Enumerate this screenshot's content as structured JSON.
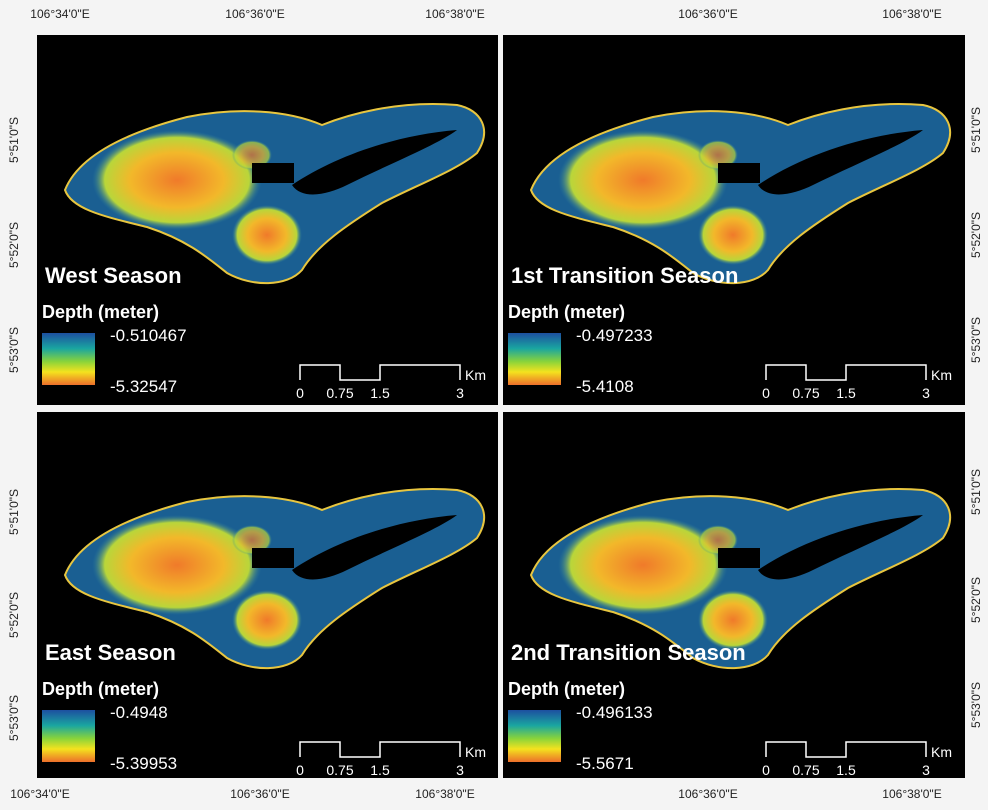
{
  "panels": [
    {
      "title": "West Season",
      "legend_title": "Depth (meter)",
      "legend_max": "-0.510467",
      "legend_min": "-5.32547",
      "scale": [
        "0",
        "0.75",
        "1.5",
        "3"
      ],
      "scale_unit": "Km"
    },
    {
      "title": "1st Transition Season",
      "legend_title": "Depth (meter)",
      "legend_max": "-0.497233",
      "legend_min": "-5.4108",
      "scale": [
        "0",
        "0.75",
        "1.5",
        "3"
      ],
      "scale_unit": "Km"
    },
    {
      "title": "East Season",
      "legend_title": "Depth (meter)",
      "legend_max": "-0.4948",
      "legend_min": "-5.39953",
      "scale": [
        "0",
        "0.75",
        "1.5",
        "3"
      ],
      "scale_unit": "Km"
    },
    {
      "title": "2nd Transition Season",
      "legend_title": "Depth (meter)",
      "legend_max": "-0.496133",
      "legend_min": "-5.5671",
      "scale": [
        "0",
        "0.75",
        "1.5",
        "3"
      ],
      "scale_unit": "Km"
    }
  ],
  "longitude_labels": {
    "top_left": [
      "106°34'0\"E",
      "106°36'0\"E",
      "106°38'0\"E"
    ],
    "top_right": [
      "106°36'0\"E",
      "106°38'0\"E"
    ],
    "bottom_left": [
      "106°34'0\"E",
      "106°36'0\"E",
      "106°38'0\"E"
    ],
    "bottom_right": [
      "106°36'0\"E",
      "106°38'0\"E"
    ]
  },
  "latitude_labels": {
    "left_top": [
      "5°51'0\"S",
      "5°52'0\"S",
      "5°53'0\"S"
    ],
    "left_bottom": [
      "5°51'0\"S",
      "5°52'0\"S",
      "5°53'0\"S"
    ],
    "right_top": [
      "5°51'0\"S",
      "5°52'0\"S",
      "5°53'0\"S"
    ],
    "right_bottom": [
      "5°51'0\"S",
      "5°52'0\"S",
      "5°53'0\"S"
    ]
  }
}
